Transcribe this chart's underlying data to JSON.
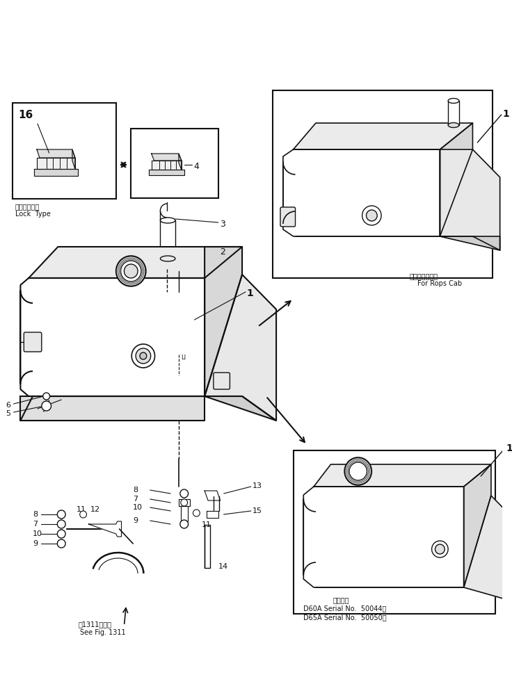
{
  "bg_color": "#ffffff",
  "line_color": "#111111",
  "labels": {
    "lock_type_jp": "ロックタイプ",
    "lock_type_en": "Lock  Type",
    "rops_jp": "ロプスキャブ用",
    "rops_en": "For Rops Cab",
    "see_fig_jp": "第1311図参照",
    "see_fig_en": "See Fig. 1311",
    "applicable_jp": "適用号機",
    "d60a": "D60A Serial No.  50044～",
    "d65a": "D65A Serial No.  50050～"
  }
}
